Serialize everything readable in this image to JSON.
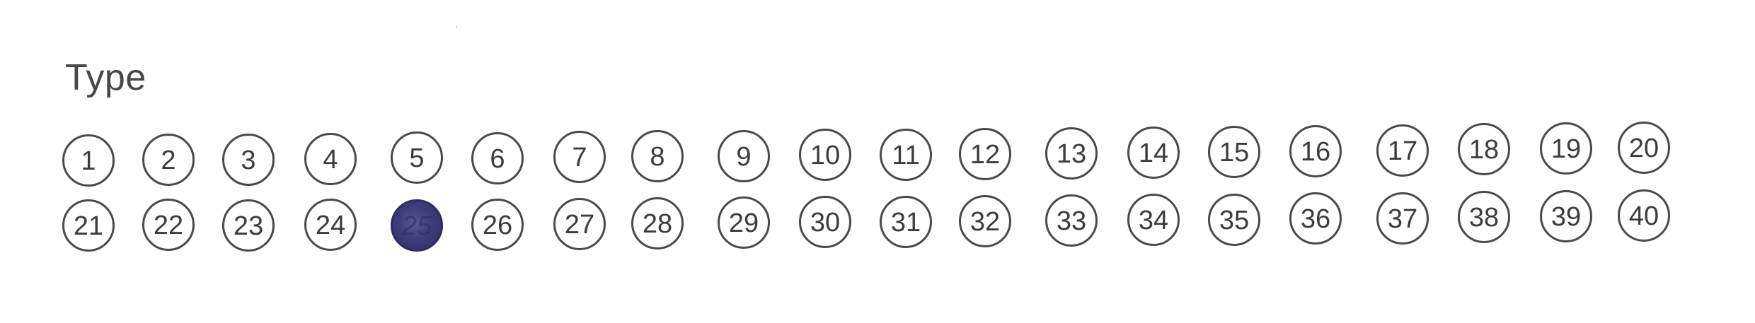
{
  "section": {
    "title": "Type"
  },
  "bubbles": {
    "marked_value": "25",
    "marked_color": "#3f3b7a",
    "items": [
      {
        "label": "1"
      },
      {
        "label": "2"
      },
      {
        "label": "3"
      },
      {
        "label": "4"
      },
      {
        "label": "5"
      },
      {
        "label": "6"
      },
      {
        "label": "7"
      },
      {
        "label": "8"
      },
      {
        "label": "9"
      },
      {
        "label": "10"
      },
      {
        "label": "11"
      },
      {
        "label": "12"
      },
      {
        "label": "13"
      },
      {
        "label": "14"
      },
      {
        "label": "15"
      },
      {
        "label": "16"
      },
      {
        "label": "17"
      },
      {
        "label": "18"
      },
      {
        "label": "19"
      },
      {
        "label": "20"
      },
      {
        "label": "21"
      },
      {
        "label": "22"
      },
      {
        "label": "23"
      },
      {
        "label": "24"
      },
      {
        "label": "25",
        "filled": true
      },
      {
        "label": "26"
      },
      {
        "label": "27"
      },
      {
        "label": "28"
      },
      {
        "label": "29"
      },
      {
        "label": "30"
      },
      {
        "label": "31"
      },
      {
        "label": "32"
      },
      {
        "label": "33"
      },
      {
        "label": "34"
      },
      {
        "label": "35"
      },
      {
        "label": "36"
      },
      {
        "label": "37"
      },
      {
        "label": "38"
      },
      {
        "label": "39"
      },
      {
        "label": "40"
      }
    ]
  }
}
